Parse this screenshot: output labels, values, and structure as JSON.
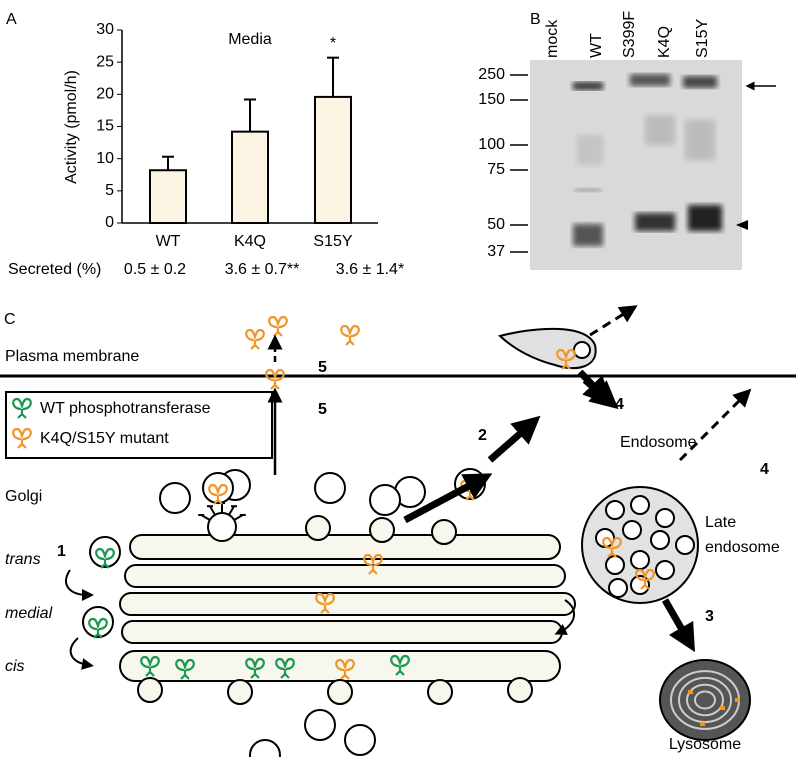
{
  "chart_data": {
    "type": "bar",
    "panel_label": "A",
    "title": "Media",
    "ylabel": "Activity (pmol/h)",
    "categories": [
      "WT",
      "K4Q",
      "S15Y"
    ],
    "values": [
      8.2,
      14.2,
      19.6
    ],
    "errors": [
      2.1,
      5.0,
      6.1
    ],
    "annotations": [
      "",
      "",
      "*"
    ],
    "color": "#fcf5e3",
    "ylim": [
      0,
      30
    ],
    "yticks": [
      0,
      5,
      10,
      15,
      20,
      25,
      30
    ],
    "row_label": "Secreted (%)",
    "row_values": [
      "0.5 ± 0.2",
      "3.6 ± 0.7**",
      "3.6 ± 1.4*"
    ]
  },
  "panel_b": {
    "label": "B",
    "lanes": [
      "mock",
      "WT",
      "S399F",
      "K4Q",
      "S15Y"
    ],
    "markers": [
      "250",
      "150",
      "100",
      "75",
      "50",
      "37"
    ]
  },
  "panel_c": {
    "label": "C",
    "membrane": "Plasma membrane",
    "legend": [
      "WT phosphotransferase",
      "K4Q/S15Y mutant"
    ],
    "golgi": "Golgi",
    "sides": [
      "trans",
      "medial",
      "cis"
    ],
    "endosome": "Endosome",
    "late_endosome": [
      "Late",
      "endosome"
    ],
    "lysosome": "Lysosome",
    "steps": [
      "1",
      "2",
      "3",
      "4",
      "4",
      "5",
      "5"
    ]
  }
}
